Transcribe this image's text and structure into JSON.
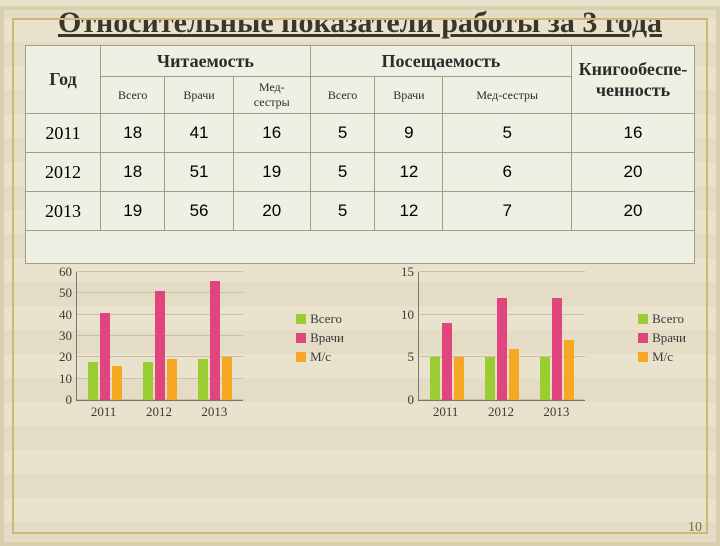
{
  "title": "Относительные показатели работы за 3 года",
  "table": {
    "col_year": "Год",
    "group1": "Читаемость",
    "group2": "Посещаемость",
    "group3": "Книгообеспе-\nченность",
    "sub": [
      "Всего",
      "Врачи",
      "Мед-\nсестры",
      "Всего",
      "Врачи",
      "Мед-сестры"
    ],
    "rows": [
      {
        "year": "2011",
        "v": [
          "18",
          "41",
          "16",
          "5",
          "9",
          "5",
          "16"
        ]
      },
      {
        "year": "2012",
        "v": [
          "18",
          "51",
          "19",
          "5",
          "12",
          "6",
          "20"
        ]
      },
      {
        "year": "2013",
        "v": [
          "19",
          "56",
          "20",
          "5",
          "12",
          "7",
          "20"
        ]
      }
    ]
  },
  "legend_labels": [
    "Всего",
    "Врачи",
    "М/с"
  ],
  "series_colors": [
    "#9acd32",
    "#e0457e",
    "#f7a823"
  ],
  "axis_color": "#777777",
  "grid_color": "#c8c0a8",
  "tick_font": 13,
  "chart1": {
    "ymax": 60,
    "ystep": 10,
    "cats": [
      "2011",
      "2012",
      "2013"
    ],
    "data": [
      [
        18,
        41,
        16
      ],
      [
        18,
        51,
        19
      ],
      [
        19,
        56,
        20
      ]
    ]
  },
  "chart2": {
    "ymax": 15,
    "ystep": 5,
    "cats": [
      "2011",
      "2012",
      "2013"
    ],
    "data": [
      [
        5,
        9,
        5
      ],
      [
        5,
        12,
        6
      ],
      [
        5,
        12,
        7
      ]
    ]
  },
  "page_number": "10"
}
